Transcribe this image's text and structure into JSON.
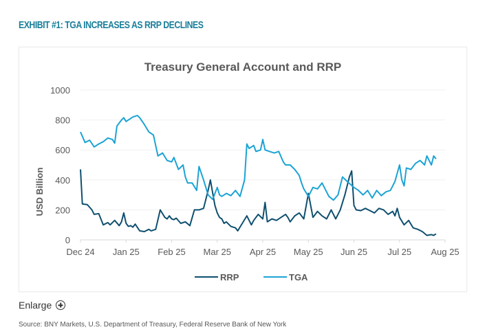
{
  "page": {
    "exhibit_title": "EXHIBIT #1: TGA INCREASES AS RRP DECLINES",
    "enlarge_label": "Enlarge",
    "enlarge_icon": "plus-circle-icon",
    "source": "Source: BNY Markets, U.S. Department of Treasury, Federal Reserve Bank of New York"
  },
  "chart_data": {
    "type": "line",
    "title": "Treasury General Account and RRP",
    "xlabel": "",
    "ylabel": "USD Billion",
    "ylim": [
      0,
      1000
    ],
    "yticks": [
      0,
      200,
      400,
      600,
      800,
      1000
    ],
    "xlim": [
      0,
      8
    ],
    "xticks": [
      0,
      1,
      2,
      3,
      4,
      5,
      6,
      7,
      8
    ],
    "xtick_labels": [
      "Dec 24",
      "Jan 25",
      "Feb 25",
      "Mar 25",
      "Apr 25",
      "May 25",
      "Jun 25",
      "Jul 25",
      "Aug 25"
    ],
    "grid": true,
    "legend_position": "bottom",
    "series": [
      {
        "name": "RRP",
        "color": "#0e4f6e",
        "x": [
          0,
          0.04,
          0.15,
          0.25,
          0.3,
          0.4,
          0.5,
          0.6,
          0.65,
          0.75,
          0.85,
          0.9,
          0.95,
          1.0,
          1.05,
          1.1,
          1.15,
          1.2,
          1.3,
          1.4,
          1.5,
          1.55,
          1.65,
          1.75,
          1.85,
          1.9,
          1.95,
          2.0,
          2.05,
          2.1,
          2.2,
          2.3,
          2.4,
          2.5,
          2.6,
          2.7,
          2.8,
          2.85,
          2.95,
          3.0,
          3.05,
          3.1,
          3.15,
          3.2,
          3.3,
          3.4,
          3.45,
          3.55,
          3.65,
          3.75,
          3.8,
          3.9,
          4.0,
          4.05,
          4.1,
          4.2,
          4.3,
          4.4,
          4.5,
          4.55,
          4.6,
          4.7,
          4.8,
          4.9,
          5.0,
          5.1,
          5.2,
          5.3,
          5.4,
          5.5,
          5.6,
          5.7,
          5.8,
          5.9,
          5.95,
          6.0,
          6.05,
          6.15,
          6.25,
          6.35,
          6.45,
          6.55,
          6.65,
          6.75,
          6.85,
          6.9,
          6.95,
          7.0,
          7.1,
          7.2,
          7.3,
          7.4,
          7.5,
          7.6,
          7.7,
          7.75,
          7.8
        ],
        "values": [
          470,
          240,
          235,
          200,
          170,
          175,
          100,
          115,
          100,
          130,
          95,
          120,
          180,
          110,
          90,
          95,
          85,
          105,
          60,
          55,
          70,
          60,
          70,
          200,
          150,
          140,
          160,
          140,
          135,
          145,
          110,
          120,
          95,
          200,
          200,
          210,
          330,
          400,
          230,
          180,
          150,
          140,
          110,
          120,
          90,
          80,
          60,
          110,
          160,
          100,
          130,
          170,
          140,
          250,
          120,
          140,
          130,
          150,
          170,
          150,
          120,
          160,
          180,
          140,
          310,
          150,
          190,
          160,
          140,
          200,
          140,
          200,
          300,
          420,
          460,
          230,
          200,
          195,
          210,
          195,
          180,
          210,
          200,
          170,
          190,
          160,
          210,
          150,
          100,
          130,
          80,
          70,
          55,
          30,
          35,
          30,
          40
        ]
      },
      {
        "name": "TGA",
        "color": "#1ba3d4",
        "x": [
          0,
          0.1,
          0.2,
          0.3,
          0.4,
          0.5,
          0.6,
          0.7,
          0.75,
          0.8,
          0.9,
          0.95,
          1.0,
          1.05,
          1.15,
          1.25,
          1.3,
          1.4,
          1.5,
          1.6,
          1.7,
          1.8,
          1.9,
          2.0,
          2.05,
          2.15,
          2.25,
          2.3,
          2.35,
          2.45,
          2.55,
          2.6,
          2.7,
          2.8,
          2.9,
          3.0,
          3.05,
          3.1,
          3.2,
          3.3,
          3.4,
          3.5,
          3.6,
          3.65,
          3.7,
          3.8,
          3.85,
          3.95,
          4.0,
          4.05,
          4.15,
          4.25,
          4.35,
          4.45,
          4.5,
          4.6,
          4.7,
          4.8,
          4.85,
          4.9,
          5.0,
          5.1,
          5.2,
          5.3,
          5.35,
          5.45,
          5.55,
          5.65,
          5.75,
          5.85,
          6.0,
          6.1,
          6.2,
          6.3,
          6.4,
          6.5,
          6.6,
          6.7,
          6.8,
          6.9,
          7.0,
          7.05,
          7.1,
          7.15,
          7.25,
          7.35,
          7.45,
          7.55,
          7.6,
          7.7,
          7.75,
          7.8
        ],
        "values": [
          720,
          650,
          665,
          620,
          640,
          655,
          680,
          670,
          645,
          760,
          800,
          815,
          790,
          800,
          820,
          830,
          815,
          770,
          720,
          700,
          560,
          580,
          530,
          520,
          550,
          470,
          500,
          420,
          380,
          380,
          330,
          490,
          400,
          300,
          270,
          350,
          300,
          290,
          310,
          295,
          330,
          290,
          400,
          640,
          610,
          630,
          590,
          600,
          670,
          600,
          590,
          580,
          590,
          520,
          500,
          500,
          470,
          430,
          380,
          340,
          290,
          350,
          340,
          380,
          350,
          290,
          265,
          300,
          420,
          390,
          350,
          330,
          300,
          330,
          280,
          330,
          295,
          320,
          330,
          390,
          500,
          400,
          360,
          480,
          470,
          510,
          530,
          500,
          560,
          500,
          560,
          540
        ]
      }
    ]
  }
}
